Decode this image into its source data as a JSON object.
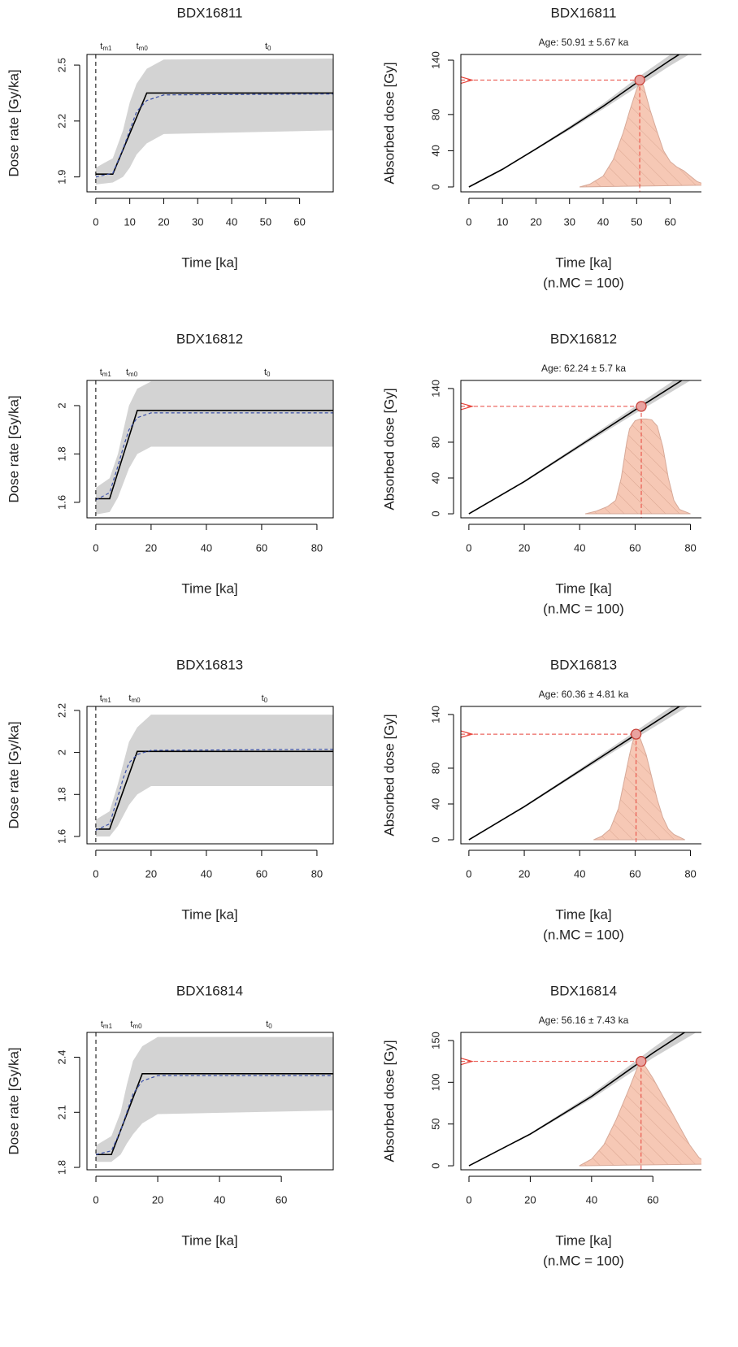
{
  "chart_data": [
    {
      "type": "line",
      "title": "BDX16811",
      "xlabel": "Time [ka]",
      "ylabel": "Dose rate [Gy/ka]",
      "xlim": [
        -2.6,
        69.9
      ],
      "ylim": [
        1.82,
        2.557
      ],
      "xticks": [
        0,
        10,
        20,
        30,
        40,
        50,
        60
      ],
      "yticks": [
        1.9,
        2.2,
        2.5
      ],
      "band": {
        "x": [
          0,
          5,
          8,
          10,
          12,
          15,
          20,
          69.9
        ],
        "lower": [
          1.86,
          1.87,
          1.9,
          1.95,
          2.02,
          2.08,
          2.13,
          2.15
        ],
        "upper": [
          1.95,
          2.0,
          2.15,
          2.3,
          2.4,
          2.48,
          2.53,
          2.535
        ],
        "color": "#d3d3d3"
      },
      "series": [
        {
          "x": [
            0,
            5,
            15,
            69.9
          ],
          "values": [
            1.915,
            1.915,
            2.35,
            2.35
          ],
          "color": "#000000"
        },
        {
          "x": [
            0,
            5,
            8,
            10,
            12,
            15,
            20,
            69.9
          ],
          "values": [
            1.9,
            1.92,
            2.05,
            2.15,
            2.25,
            2.31,
            2.34,
            2.345
          ],
          "color": "#3a4fa8",
          "dashed": true
        }
      ],
      "vline": 0,
      "annotations": [
        {
          "text": "t",
          "sub": "m1",
          "x": 3
        },
        {
          "text": "t",
          "sub": "m0",
          "x": 13.6
        },
        {
          "text": "t",
          "sub": "0",
          "x": 50.7
        }
      ]
    },
    {
      "type": "density",
      "title": "BDX16811",
      "subtitle": "Age: 50.91 ± 5.67 ka",
      "xlabel": "Time [ka]",
      "xlabel2": "(n.MC = 100)",
      "ylabel": "Absorbed dose [Gy]",
      "xlim": [
        -2.4,
        71
      ],
      "ylim": [
        -5.4,
        146.3
      ],
      "xticks": [
        0,
        10,
        20,
        30,
        40,
        50,
        60
      ],
      "yticks": [
        0,
        40,
        80,
        140
      ],
      "line": {
        "x": [
          0,
          10,
          20,
          30,
          40,
          50,
          60,
          71
        ],
        "values": [
          0,
          19.5,
          42,
          65,
          89,
          115,
          140,
          166
        ],
        "lower": [
          0,
          19,
          41,
          63,
          86,
          110,
          134,
          158
        ],
        "upper": [
          0,
          20,
          43,
          67,
          92,
          120,
          146,
          174
        ]
      },
      "density": {
        "x": [
          33,
          36,
          40,
          43,
          46,
          48,
          50,
          51,
          52,
          54,
          56,
          58,
          60,
          62,
          64,
          66,
          68,
          71
        ],
        "values": [
          0,
          3,
          12,
          30,
          60,
          85,
          108,
          116,
          112,
          85,
          62,
          40,
          28,
          22,
          18,
          12,
          6,
          2
        ]
      },
      "point": {
        "x": 50.91,
        "y": 118
      }
    },
    {
      "type": "line",
      "title": "BDX16812",
      "xlabel": "Time [ka]",
      "ylabel": "Dose rate [Gy/ka]",
      "xlim": [
        -3.2,
        85.9
      ],
      "ylim": [
        1.536,
        2.104
      ],
      "xticks": [
        0,
        20,
        40,
        60,
        80
      ],
      "yticks": [
        1.6,
        1.8,
        2.0
      ],
      "band": {
        "x": [
          0,
          5,
          8,
          10,
          12,
          15,
          20,
          85.9
        ],
        "lower": [
          1.55,
          1.56,
          1.62,
          1.68,
          1.74,
          1.8,
          1.83,
          1.83
        ],
        "upper": [
          1.66,
          1.7,
          1.8,
          1.9,
          2.0,
          2.07,
          2.1,
          2.1
        ],
        "color": "#d3d3d3"
      },
      "series": [
        {
          "x": [
            0,
            5,
            15,
            85.9
          ],
          "values": [
            1.615,
            1.615,
            1.98,
            1.98
          ],
          "color": "#000000"
        },
        {
          "x": [
            0,
            5,
            8,
            10,
            12,
            15,
            20,
            85.9
          ],
          "values": [
            1.61,
            1.64,
            1.75,
            1.83,
            1.9,
            1.95,
            1.97,
            1.97
          ],
          "color": "#3a4fa8",
          "dashed": true
        }
      ],
      "vline": 0,
      "annotations": [
        {
          "text": "t",
          "sub": "m1",
          "x": 3.5
        },
        {
          "text": "t",
          "sub": "m0",
          "x": 13
        },
        {
          "text": "t",
          "sub": "0",
          "x": 62
        }
      ]
    },
    {
      "type": "density",
      "title": "BDX16812",
      "subtitle": "Age: 62.24 ± 5.7 ka",
      "xlabel": "Time [ka]",
      "xlabel2": "(n.MC = 100)",
      "ylabel": "Absorbed dose [Gy]",
      "xlim": [
        -2.9,
        86
      ],
      "ylim": [
        -4.5,
        149
      ],
      "xticks": [
        0,
        20,
        40,
        60,
        80
      ],
      "yticks": [
        0,
        40,
        80,
        140
      ],
      "line": {
        "x": [
          0,
          20,
          40,
          60,
          86
        ],
        "values": [
          0,
          36,
          76,
          116,
          167
        ],
        "lower": [
          0,
          35,
          74,
          112,
          160
        ],
        "upper": [
          0,
          37,
          78,
          120,
          174
        ]
      },
      "density": {
        "x": [
          42,
          46,
          50,
          53,
          55,
          57,
          58,
          60,
          62,
          64,
          66,
          68,
          70,
          72,
          74,
          76,
          80
        ],
        "values": [
          0,
          3,
          8,
          15,
          40,
          80,
          95,
          104,
          106,
          106,
          105,
          98,
          75,
          40,
          15,
          5,
          0
        ]
      },
      "point": {
        "x": 62.24,
        "y": 120
      }
    },
    {
      "type": "line",
      "title": "BDX16813",
      "xlabel": "Time [ka]",
      "ylabel": "Dose rate [Gy/ka]",
      "xlim": [
        -3.2,
        85.9
      ],
      "ylim": [
        1.565,
        2.219
      ],
      "xticks": [
        0,
        20,
        40,
        60,
        80
      ],
      "yticks": [
        1.6,
        1.8,
        2.0,
        2.2
      ],
      "band": {
        "x": [
          0,
          5,
          8,
          10,
          12,
          15,
          20,
          85.9
        ],
        "lower": [
          1.6,
          1.6,
          1.65,
          1.7,
          1.75,
          1.8,
          1.84,
          1.84
        ],
        "upper": [
          1.68,
          1.72,
          1.85,
          1.95,
          2.05,
          2.12,
          2.18,
          2.18
        ],
        "color": "#d3d3d3"
      },
      "series": [
        {
          "x": [
            0,
            5,
            15,
            85.9
          ],
          "values": [
            1.635,
            1.635,
            2.005,
            2.005
          ],
          "color": "#000000"
        },
        {
          "x": [
            0,
            5,
            8,
            10,
            12,
            15,
            20,
            85.9
          ],
          "values": [
            1.63,
            1.66,
            1.79,
            1.88,
            1.95,
            1.99,
            2.01,
            2.015
          ],
          "color": "#3a4fa8",
          "dashed": true
        }
      ],
      "vline": 0,
      "annotations": [
        {
          "text": "t",
          "sub": "m1",
          "x": 3.5
        },
        {
          "text": "t",
          "sub": "m0",
          "x": 14
        },
        {
          "text": "t",
          "sub": "0",
          "x": 61
        }
      ]
    },
    {
      "type": "density",
      "title": "BDX16813",
      "subtitle": "Age: 60.36 ± 4.81 ka",
      "xlabel": "Time [ka]",
      "xlabel2": "(n.MC = 100)",
      "ylabel": "Absorbed dose [Gy]",
      "xlim": [
        -2.9,
        86
      ],
      "ylim": [
        -4.5,
        149
      ],
      "xticks": [
        0,
        20,
        40,
        60,
        80
      ],
      "yticks": [
        0,
        40,
        80,
        140
      ],
      "line": {
        "x": [
          0,
          20,
          40,
          60,
          86
        ],
        "values": [
          0,
          37,
          77,
          117,
          169
        ],
        "lower": [
          0,
          36,
          75,
          113,
          162
        ],
        "upper": [
          0,
          38,
          79,
          121,
          176
        ]
      },
      "density": {
        "x": [
          45,
          48,
          51,
          54,
          56,
          58,
          59,
          60,
          61,
          62,
          64,
          66,
          68,
          70,
          72,
          74,
          76,
          78
        ],
        "values": [
          0,
          4,
          12,
          35,
          65,
          95,
          108,
          117,
          118,
          112,
          95,
          70,
          45,
          25,
          12,
          6,
          3,
          0
        ]
      },
      "point": {
        "x": 60.36,
        "y": 118
      }
    },
    {
      "type": "line",
      "title": "BDX16814",
      "xlabel": "Time [ka]",
      "ylabel": "Dose rate [Gy/ka]",
      "xlim": [
        -2.9,
        76.8
      ],
      "ylim": [
        1.787,
        2.535
      ],
      "xticks": [
        0,
        20,
        40,
        60
      ],
      "yticks": [
        1.8,
        2.1,
        2.4
      ],
      "band": {
        "x": [
          0,
          5,
          8,
          10,
          12,
          15,
          20,
          76.8
        ],
        "lower": [
          1.83,
          1.83,
          1.87,
          1.93,
          1.98,
          2.04,
          2.09,
          2.11
        ],
        "upper": [
          1.92,
          1.97,
          2.1,
          2.25,
          2.38,
          2.46,
          2.51,
          2.51
        ],
        "color": "#d3d3d3"
      },
      "series": [
        {
          "x": [
            0,
            5,
            15,
            76.8
          ],
          "values": [
            1.87,
            1.87,
            2.31,
            2.31
          ],
          "color": "#000000"
        },
        {
          "x": [
            0,
            5,
            8,
            10,
            12,
            15,
            20,
            76.8
          ],
          "values": [
            1.87,
            1.89,
            2.0,
            2.1,
            2.2,
            2.27,
            2.3,
            2.3
          ],
          "color": "#3a4fa8",
          "dashed": true
        }
      ],
      "vline": 0,
      "annotations": [
        {
          "text": "t",
          "sub": "m1",
          "x": 3.4
        },
        {
          "text": "t",
          "sub": "m0",
          "x": 13
        },
        {
          "text": "t",
          "sub": "0",
          "x": 56
        }
      ]
    },
    {
      "type": "density",
      "title": "BDX16814",
      "subtitle": "Age: 56.16 ± 7.43 ka",
      "xlabel": "Time [ka]",
      "xlabel2": "(n.MC = 100)",
      "ylabel": "Absorbed dose [Gy]",
      "xlim": [
        -2.65,
        77.7
      ],
      "ylim": [
        -4.8,
        159.7
      ],
      "xticks": [
        0,
        20,
        40,
        60
      ],
      "yticks": [
        0,
        50,
        100,
        150
      ],
      "line": {
        "x": [
          0,
          20,
          40,
          60,
          78
        ],
        "values": [
          0,
          38,
          83,
          135,
          178
        ],
        "lower": [
          0,
          37,
          80,
          129,
          168
        ],
        "upper": [
          0,
          39,
          86,
          141,
          188
        ]
      },
      "density": {
        "x": [
          36,
          40,
          44,
          48,
          52,
          55,
          56,
          57,
          60,
          63,
          66,
          69,
          72,
          75,
          78
        ],
        "values": [
          0,
          8,
          25,
          55,
          90,
          118,
          125,
          122,
          105,
          85,
          65,
          45,
          25,
          10,
          2
        ]
      },
      "point": {
        "x": 56.16,
        "y": 125
      }
    }
  ]
}
